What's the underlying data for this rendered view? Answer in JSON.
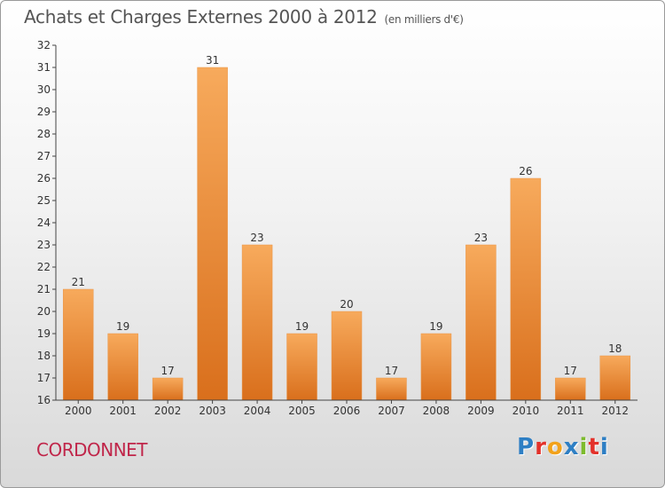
{
  "header": {
    "title": "Achats et Charges Externes 2000 à 2012",
    "unit": "(en milliers d'€)"
  },
  "footer": {
    "commune": "CORDONNET",
    "logo_letters": [
      "P",
      "r",
      "o",
      "x",
      "i",
      "t",
      "i"
    ],
    "logo_colors": [
      "#2e7fc4",
      "#e3322b",
      "#f2a21b",
      "#2e7fc4",
      "#7dbb2e",
      "#e3322b",
      "#2e7fc4"
    ]
  },
  "chart_data": {
    "type": "bar",
    "title": "Achats et Charges Externes 2000 à 2012",
    "subtitle": "(en milliers d'€)",
    "categories": [
      "2000",
      "2001",
      "2002",
      "2003",
      "2004",
      "2005",
      "2006",
      "2007",
      "2008",
      "2009",
      "2010",
      "2011",
      "2012"
    ],
    "values": [
      21,
      19,
      17,
      31,
      23,
      19,
      20,
      17,
      19,
      23,
      26,
      17,
      18
    ],
    "data_labels": [
      "21",
      "19",
      "17",
      "31",
      "23",
      "19",
      "20",
      "17",
      "19",
      "23",
      "26",
      "17",
      "18"
    ],
    "ylim": [
      16,
      32
    ],
    "yticks": [
      "16",
      "17",
      "18",
      "19",
      "20",
      "21",
      "22",
      "23",
      "24",
      "25",
      "26",
      "27",
      "28",
      "29",
      "30",
      "31",
      "32"
    ],
    "xlabel": "",
    "ylabel": "",
    "bar_color": "#f08a2c",
    "grid": false
  }
}
